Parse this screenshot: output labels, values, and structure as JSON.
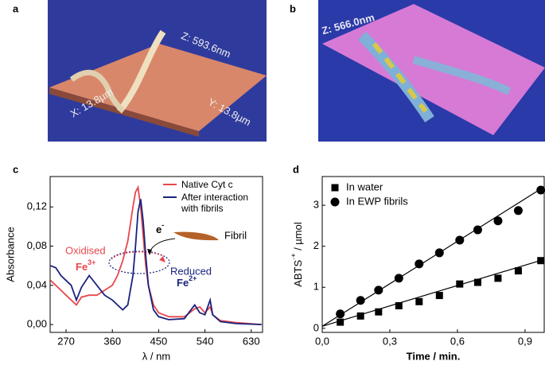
{
  "panel_labels": [
    "a",
    "b",
    "c",
    "d"
  ],
  "images": [
    {
      "annotations": [
        "Z: 593.6nm",
        "X: 13.8µm",
        "Y: 13.8µm"
      ]
    },
    {
      "annotations": [
        "Z: 566.0nm"
      ]
    }
  ],
  "chart_data": [
    {
      "type": "line",
      "x": [
        240,
        250,
        260,
        270,
        280,
        290,
        300,
        315,
        330,
        345,
        360,
        370,
        380,
        390,
        400,
        405,
        410,
        415,
        420,
        425,
        430,
        440,
        450,
        470,
        500,
        520,
        530,
        540,
        550,
        555,
        570,
        600,
        650
      ],
      "series": [
        {
          "name": "Native Cyt c",
          "color": "#e8474d",
          "values": [
            0.045,
            0.04,
            0.035,
            0.03,
            0.025,
            0.02,
            0.028,
            0.03,
            0.03,
            0.035,
            0.04,
            0.05,
            0.065,
            0.085,
            0.12,
            0.135,
            0.14,
            0.12,
            0.09,
            0.06,
            0.04,
            0.02,
            0.012,
            0.008,
            0.008,
            0.016,
            0.018,
            0.012,
            0.018,
            0.01,
            0.004,
            0.002,
            0
          ]
        },
        {
          "name": "After interaction with fibrils",
          "color": "#1a237e",
          "values": [
            0.06,
            0.058,
            0.05,
            0.045,
            0.04,
            0.025,
            0.038,
            0.05,
            0.04,
            0.03,
            0.025,
            0.02,
            0.015,
            0.02,
            0.05,
            0.08,
            0.115,
            0.128,
            0.105,
            0.07,
            0.04,
            0.015,
            0.008,
            0.005,
            0.006,
            0.02,
            0.012,
            0.01,
            0.025,
            0.01,
            0.003,
            0.001,
            0
          ]
        }
      ],
      "xlim": [
        239,
        652
      ],
      "ylim": [
        -0.008,
        0.151
      ],
      "xticks": [
        270,
        360,
        450,
        540,
        630
      ],
      "yticks": [
        {
          "value": 0,
          "label": "0,00"
        },
        {
          "value": 0.04,
          "label": "0,04"
        },
        {
          "value": 0.08,
          "label": "0,08"
        },
        {
          "value": 0.12,
          "label": "0,12"
        }
      ],
      "xlabel": "λ / nm",
      "ylabel": "Absorbance",
      "legend": "upper right",
      "annotations": {
        "oxidised": "Oxidised",
        "fe3": {
          "text": "Fe",
          "sup": "3+"
        },
        "reduced": "Reduced",
        "fe2": {
          "text": "Fe",
          "sup": "2+"
        },
        "electron": {
          "text": "e",
          "sup": "-"
        },
        "fibril": "Fibril"
      }
    },
    {
      "type": "scatter",
      "series": [
        {
          "name": "In water",
          "marker": "square",
          "color": "#000000",
          "x": [
            0.08,
            0.17,
            0.25,
            0.34,
            0.43,
            0.52,
            0.61,
            0.69,
            0.78,
            0.87,
            0.97
          ],
          "values": [
            0.15,
            0.3,
            0.4,
            0.55,
            0.65,
            0.8,
            1.08,
            1.12,
            1.22,
            1.4,
            1.65
          ],
          "fit": {
            "x": [
              0,
              0.985
            ],
            "values": [
              0.05,
              1.68
            ]
          }
        },
        {
          "name": "In EWP fibrils",
          "marker": "circle",
          "color": "#000000",
          "x": [
            0.08,
            0.17,
            0.25,
            0.34,
            0.43,
            0.52,
            0.61,
            0.69,
            0.78,
            0.87,
            0.97
          ],
          "values": [
            0.35,
            0.68,
            0.93,
            1.22,
            1.57,
            1.84,
            2.15,
            2.4,
            2.62,
            2.87,
            3.37
          ],
          "fit": {
            "x": [
              0,
              0.985
            ],
            "values": [
              0.05,
              3.45
            ]
          }
        }
      ],
      "xlim": [
        0,
        0.985
      ],
      "ylim": [
        -0.1,
        3.7
      ],
      "xticks": [
        {
          "value": 0,
          "label": "0,0"
        },
        {
          "value": 0.3,
          "label": "0,3"
        },
        {
          "value": 0.6,
          "label": "0,6"
        },
        {
          "value": 0.9,
          "label": "0,9"
        }
      ],
      "yticks": [
        0,
        1,
        2,
        3
      ],
      "xlabel": "Time / min.",
      "ylabel": {
        "text": "ABTS",
        "sup": "·+",
        "rest": " / µmol"
      },
      "legend": "upper left"
    }
  ]
}
